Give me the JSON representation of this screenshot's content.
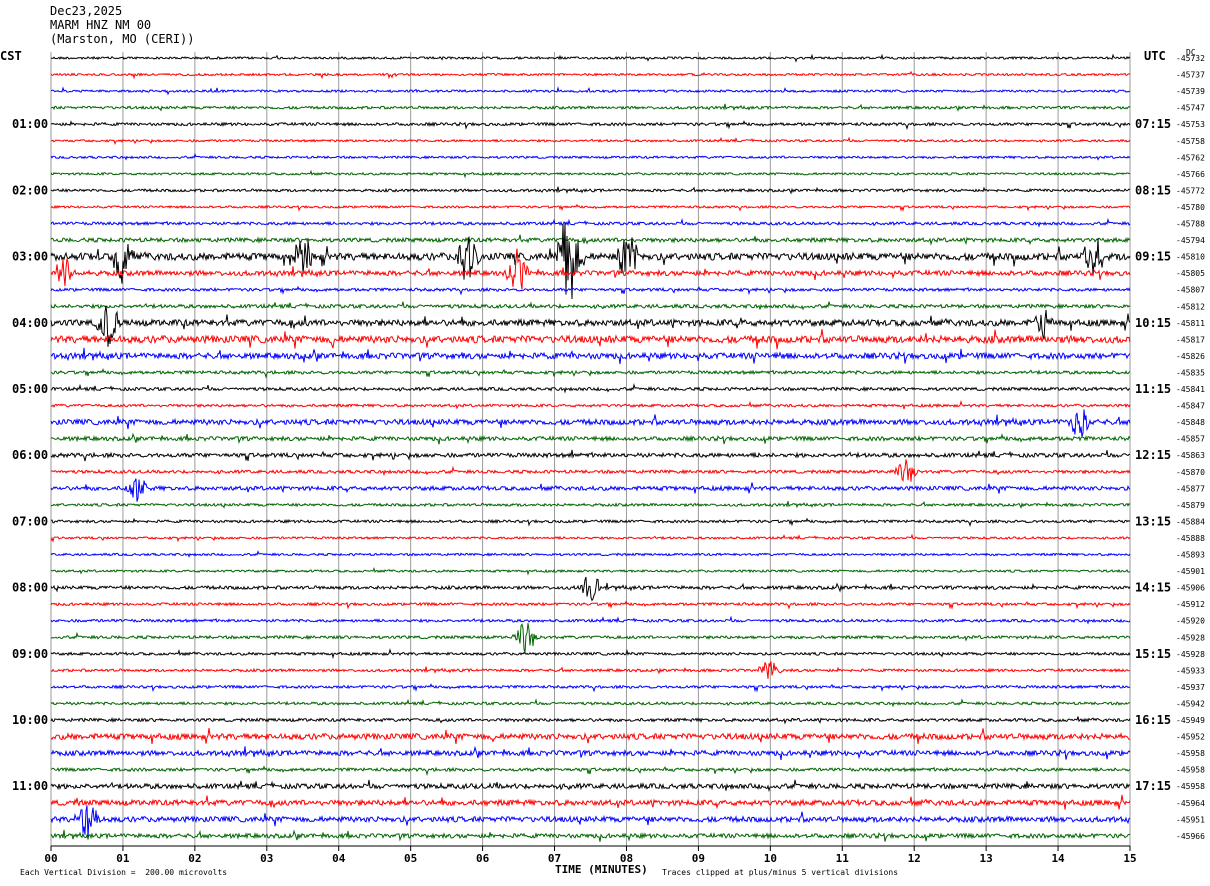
{
  "header": {
    "date": "Dec23,2025",
    "station": "MARM HNZ NM 00",
    "location": "(Marston, MO (CERI))"
  },
  "chart_data": {
    "type": "line",
    "left_axis_title": "CST",
    "right_axis_title": "UTC",
    "dc_label": "DC",
    "xlabel": "TIME (MINUTES)",
    "x_ticks": [
      "00",
      "01",
      "02",
      "03",
      "04",
      "05",
      "06",
      "07",
      "08",
      "09",
      "10",
      "11",
      "12",
      "13",
      "14",
      "15"
    ],
    "xlim": [
      0,
      15
    ],
    "left_hour_labels": [
      "01:00",
      "02:00",
      "03:00",
      "04:00",
      "05:00",
      "06:00",
      "07:00",
      "08:00",
      "09:00",
      "10:00",
      "11:00"
    ],
    "right_hour_labels": [
      "07:15",
      "08:15",
      "09:15",
      "10:15",
      "11:15",
      "12:15",
      "13:15",
      "14:15",
      "15:15",
      "16:15",
      "17:15"
    ],
    "trace_colors": [
      "#000000",
      "#ff0000",
      "#0000ff",
      "#006400"
    ],
    "dc_offsets": [
      -45732,
      -45737,
      -45739,
      -45747,
      -45753,
      -45758,
      -45762,
      -45766,
      -45772,
      -45780,
      -45788,
      -45794,
      -45810,
      -45805,
      -45807,
      -45812,
      -45811,
      -45817,
      -45826,
      -45835,
      -45841,
      -45847,
      -45848,
      -45857,
      -45863,
      -45870,
      -45877,
      -45879,
      -45884,
      -45888,
      -45893,
      -45901,
      -45906,
      -45912,
      -45920,
      -45928,
      -45928,
      -45933,
      -45937,
      -45942,
      -45949,
      -45952,
      -45958,
      -45958,
      -45958,
      -45964,
      -45951,
      -45966
    ],
    "trace_activity": [
      1,
      1,
      1,
      1.2,
      1.3,
      1,
      1,
      1,
      1.2,
      1,
      1.3,
      1.8,
      3.2,
      2.2,
      1.3,
      1.6,
      2.8,
      3.2,
      2.6,
      1.4,
      1.4,
      1.2,
      2.4,
      1.8,
      1.8,
      1.4,
      1.8,
      1.2,
      1.2,
      1,
      1,
      1,
      1.5,
      1.2,
      1.2,
      1.3,
      1.2,
      1.2,
      1.2,
      1.2,
      1.4,
      2.6,
      2.2,
      1.4,
      2.2,
      2.4,
      2.4,
      1.9
    ],
    "events": [
      {
        "trace": 12,
        "minute": 1.0,
        "amp": 28
      },
      {
        "trace": 12,
        "minute": 3.5,
        "amp": 22
      },
      {
        "trace": 12,
        "minute": 5.8,
        "amp": 40
      },
      {
        "trace": 12,
        "minute": 7.2,
        "amp": 55
      },
      {
        "trace": 12,
        "minute": 8.0,
        "amp": 34
      },
      {
        "trace": 12,
        "minute": 14.5,
        "amp": 24
      },
      {
        "trace": 13,
        "minute": 0.2,
        "amp": 20
      },
      {
        "trace": 13,
        "minute": 6.5,
        "amp": 22
      },
      {
        "trace": 16,
        "minute": 0.8,
        "amp": 24
      },
      {
        "trace": 16,
        "minute": 13.8,
        "amp": 18
      },
      {
        "trace": 22,
        "minute": 14.3,
        "amp": 18
      },
      {
        "trace": 25,
        "minute": 11.9,
        "amp": 14
      },
      {
        "trace": 26,
        "minute": 1.2,
        "amp": 14
      },
      {
        "trace": 32,
        "minute": 7.5,
        "amp": 16
      },
      {
        "trace": 35,
        "minute": 6.6,
        "amp": 18
      },
      {
        "trace": 37,
        "minute": 10.0,
        "amp": 12
      },
      {
        "trace": 46,
        "minute": 0.5,
        "amp": 26
      }
    ],
    "footer_left": "Each Vertical Division =  200.00 microvolts",
    "footer_right": "Traces clipped at plus/minus 5 vertical divisions"
  }
}
